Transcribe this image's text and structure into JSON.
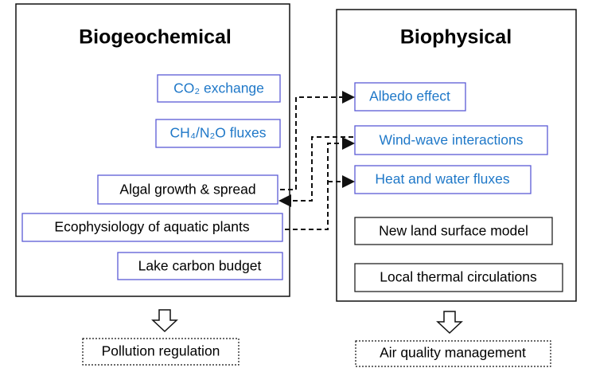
{
  "panels": [
    {
      "title": "Biogeochemical",
      "items": [
        "CO₂ exchange",
        "CH₄/N₂O fluxes",
        "Algal growth & spread",
        "Ecophysiology of aquatic plants",
        "Lake carbon budget"
      ],
      "outcome": "Pollution regulation"
    },
    {
      "title": "Biophysical",
      "items": [
        "Albedo effect",
        "Wind-wave interactions",
        "Heat and water fluxes",
        "New land surface model",
        "Local thermal circulations"
      ],
      "outcome": "Air quality management"
    }
  ]
}
